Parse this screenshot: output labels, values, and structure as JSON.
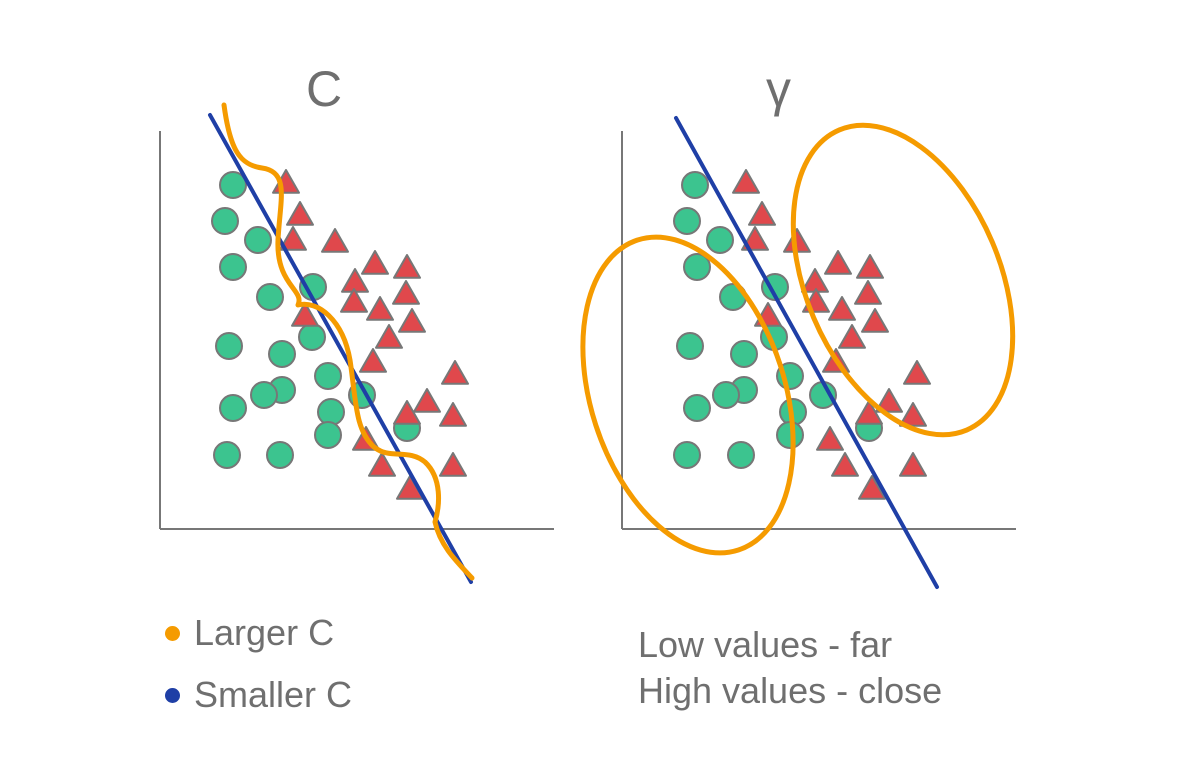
{
  "titles": {
    "left": "C",
    "right": "γ"
  },
  "legend": [
    {
      "label": "Larger C",
      "color": "#f59b00"
    },
    {
      "label": "Smaller C",
      "color": "#1f3fa6"
    }
  ],
  "notes": [
    "Low values - far",
    "High values - close"
  ],
  "colors": {
    "circle_fill": "#3cc48f",
    "triangle_fill": "#e0484c",
    "marker_stroke": "#777777",
    "axis": "#777777",
    "boundary_small_c": "#1f3fa6",
    "boundary_large_c": "#f59b00"
  },
  "icons": {
    "class_a": "circle-marker",
    "class_b": "triangle-marker"
  }
}
